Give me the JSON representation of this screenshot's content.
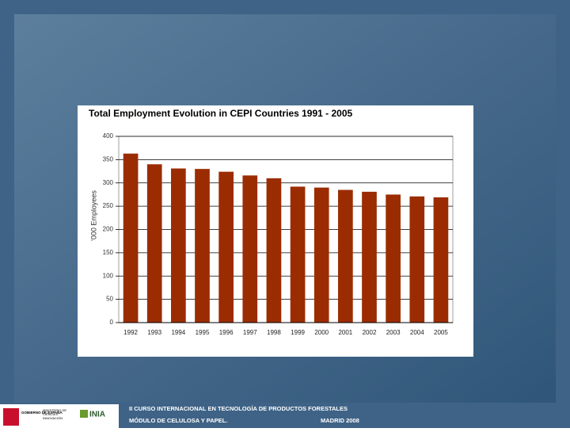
{
  "chart_data": {
    "type": "bar",
    "title": "Total Employment Evolution in CEPI Countries 1991 - 2005",
    "ylabel": "'000 Employees",
    "categories": [
      "1992",
      "1993",
      "1994",
      "1995",
      "1996",
      "1997",
      "1998",
      "1999",
      "2000",
      "2001",
      "2002",
      "2003",
      "2004",
      "2005"
    ],
    "values": [
      363,
      340,
      331,
      330,
      324,
      316,
      310,
      292,
      290,
      285,
      281,
      275,
      271,
      269
    ],
    "color": "#9b2c02",
    "ylim": [
      0,
      400
    ],
    "yticks": [
      0,
      50,
      100,
      150,
      200,
      250,
      300,
      350,
      400
    ],
    "grid": true
  },
  "footer": {
    "course": "II CURSO INTERNACIONAL EN TECNOLOGÍA DE PRODUCTOS FORESTALES",
    "module": "MÓDULO DE CELULOSA Y PAPEL.",
    "place": "MADRID 2008",
    "logo_gov": "GOBIERNO DE ESPAÑA",
    "logo_ministry": "MINISTERIO DE CIENCIA E INNOVACIÓN",
    "logo_inia": "INIA"
  }
}
